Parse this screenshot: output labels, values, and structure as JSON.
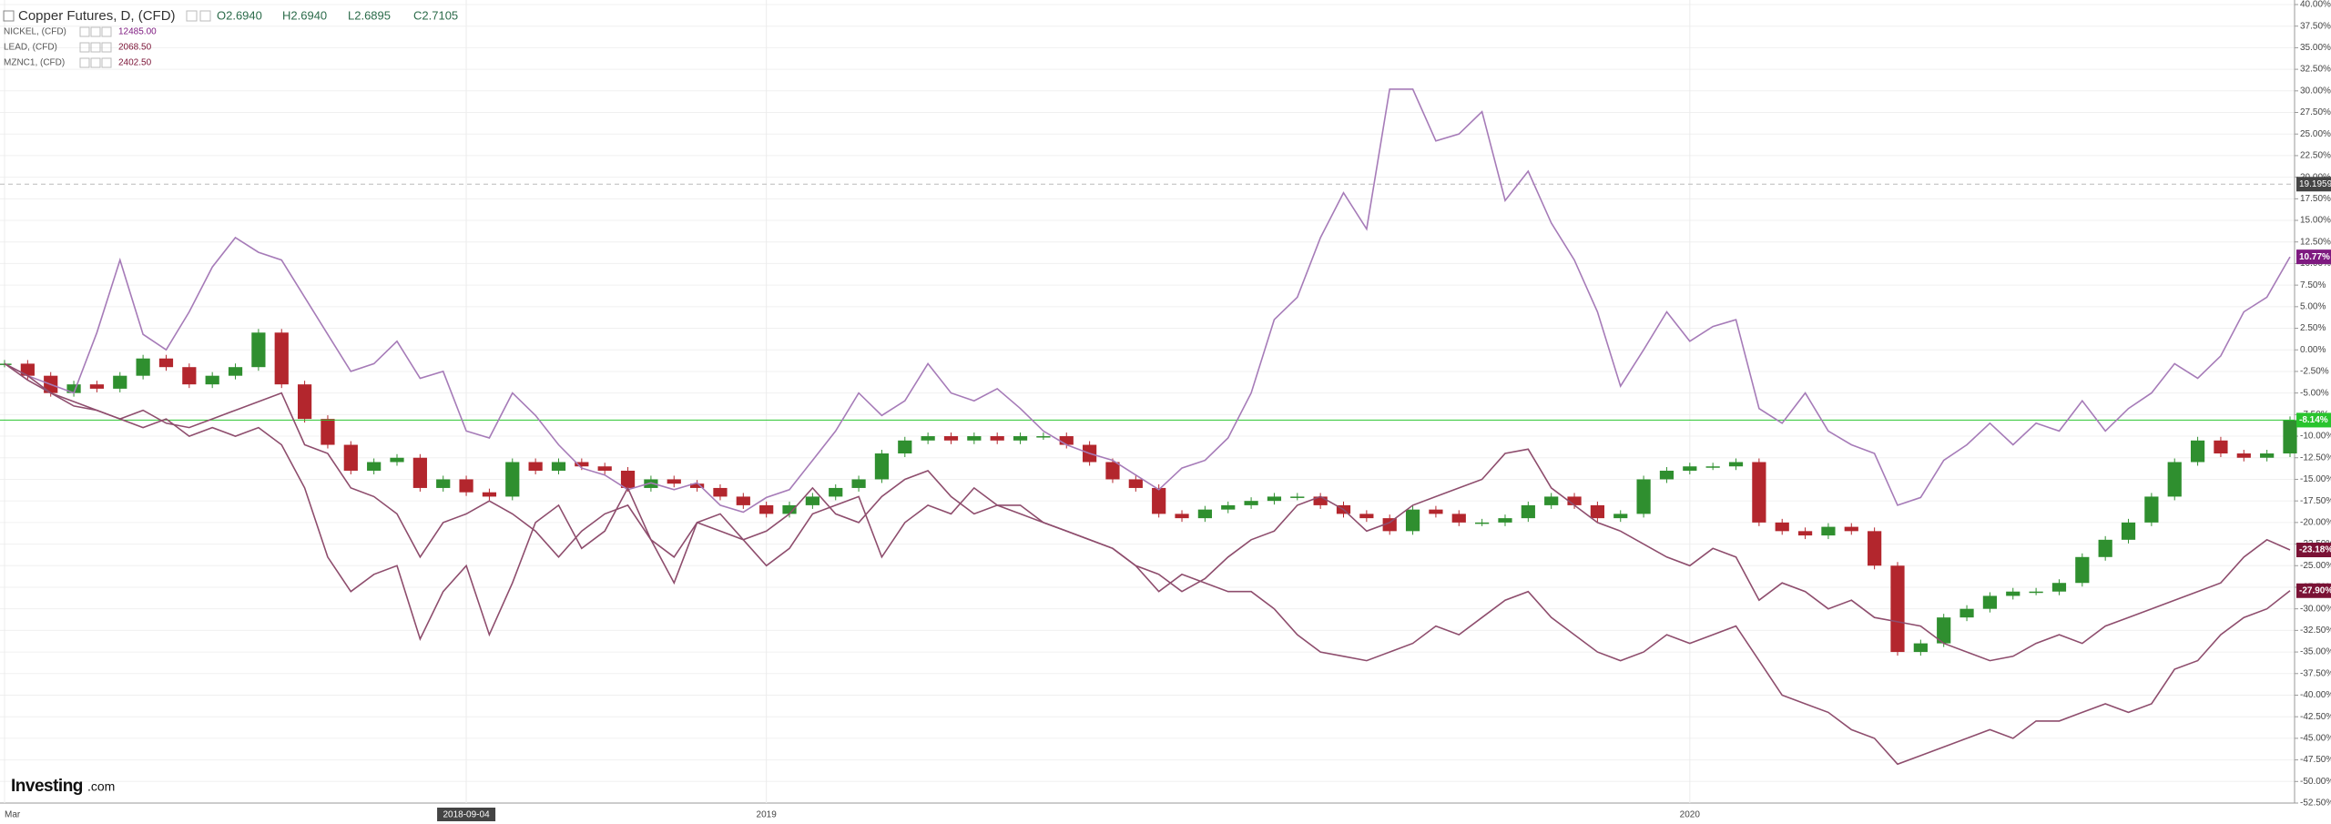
{
  "chart_data": {
    "type": "line",
    "categories": [
      "Mar",
      null,
      null,
      null,
      null,
      null,
      null,
      null,
      null,
      null,
      null,
      null,
      null,
      null,
      null,
      null,
      null,
      null,
      null,
      null,
      "2018-09-04",
      null,
      null,
      null,
      null,
      null,
      null,
      null,
      null,
      null,
      null,
      null,
      null,
      "2019",
      null,
      null,
      null,
      null,
      null,
      null,
      null,
      null,
      null,
      null,
      null,
      null,
      null,
      null,
      null,
      null,
      null,
      null,
      null,
      null,
      null,
      null,
      null,
      null,
      null,
      null,
      null,
      null,
      null,
      null,
      null,
      null,
      null,
      null,
      null,
      null,
      null,
      null,
      null,
      "2020",
      null,
      null,
      null,
      null,
      null,
      null,
      null,
      null,
      null,
      null,
      null,
      null,
      null,
      null,
      null,
      null,
      null,
      null,
      null,
      null,
      null,
      null,
      null,
      null,
      null,
      null
    ],
    "series": [
      {
        "name": "Copper Futures, D, (CFD)",
        "type": "candlestick",
        "ohlc": [
          "O2.6940",
          "H2.6940",
          "L2.6895",
          "C2.7105"
        ],
        "up_color": "#2f8f2f",
        "down_color": "#b3262d",
        "color": "#29c42e",
        "last_value_label": "-8.14%",
        "values": [
          -1.6,
          -3,
          -5,
          -4,
          -4.5,
          -3,
          -1,
          -2,
          -4,
          -3,
          -2,
          2,
          -4,
          -8,
          -11,
          -14,
          -13,
          -12.5,
          -16,
          -15,
          -16.5,
          -17,
          -13,
          -14,
          -13,
          -13.5,
          -14,
          -16,
          -15,
          -15.5,
          -16,
          -17,
          -18,
          -19,
          -18,
          -17,
          -16,
          -15,
          -12,
          -10.5,
          -10,
          -10.5,
          -10,
          -10.5,
          -10,
          -10,
          -11,
          -13,
          -15,
          -16,
          -19,
          -19.5,
          -18.5,
          -18,
          -17.5,
          -17,
          -17,
          -18,
          -19,
          -19.5,
          -21,
          -18.5,
          -19,
          -20,
          -20,
          -19.5,
          -18,
          -17,
          -18,
          -19.5,
          -19,
          -15,
          -14,
          -13.5,
          -13.5,
          -13,
          -20,
          -21,
          -21.5,
          -20.5,
          -21,
          -25,
          -35,
          -34,
          -31,
          -30,
          -28.5,
          -28,
          -28,
          -27,
          -24,
          -22,
          -20,
          -17,
          -13,
          -10.5,
          -12,
          -12.5,
          -12,
          -8.14
        ]
      },
      {
        "name": "NICKEL, (CFD)",
        "type": "line",
        "price": "12485.00",
        "color": "#a67bb8",
        "badge_color": "#7e1a80",
        "last_value_label": "10.77%",
        "values": [
          -1.6,
          -3,
          -4,
          -5,
          2,
          10.4,
          1.8,
          0,
          4.4,
          9.6,
          13,
          11.3,
          10.4,
          6.1,
          1.8,
          -2.5,
          -1.6,
          1,
          -3.3,
          -2.5,
          -9.4,
          -10.2,
          -5,
          -7.6,
          -11,
          -13.7,
          -14.5,
          -16.2,
          -15.4,
          -16.2,
          -15.4,
          -18,
          -18.8,
          -17.1,
          -16.2,
          -12.8,
          -9.4,
          -5,
          -7.6,
          -5.9,
          -1.6,
          -5,
          -5.9,
          -4.5,
          -6.8,
          -9.4,
          -11,
          -12,
          -12.8,
          -14.5,
          -16.2,
          -13.7,
          -12.8,
          -10.2,
          -5,
          3.5,
          6.1,
          13,
          18.2,
          14,
          30.2,
          30.2,
          24.2,
          25,
          27.6,
          17.3,
          20.7,
          14.7,
          10.4,
          4.4,
          -4.2,
          0,
          4.4,
          1,
          2.7,
          3.5,
          -6.8,
          -8.5,
          -5,
          -9.4,
          -11,
          -12,
          -18,
          -17.1,
          -12.8,
          -11,
          -8.5,
          -11,
          -8.5,
          -9.4,
          -5.9,
          -9.4,
          -6.8,
          -5,
          -1.6,
          -3.3,
          -0.7,
          4.4,
          6.1,
          10.77
        ]
      },
      {
        "name": "LEAD, (CFD)",
        "type": "line",
        "price": "2068.50",
        "color": "#8e4d6d",
        "badge_color": "#7a1235",
        "last_value_label": "-27.90%",
        "values": [
          -1.6,
          -3,
          -5,
          -6.5,
          -7,
          -8,
          -9,
          -8,
          -10,
          -9,
          -10,
          -9,
          -11,
          -16,
          -24,
          -28,
          -26,
          -25,
          -33.5,
          -28,
          -25,
          -33,
          -27,
          -20,
          -18,
          -23,
          -21,
          -16,
          -22,
          -27,
          -20,
          -19,
          -22,
          -25,
          -23,
          -19,
          -18,
          -17,
          -24,
          -20,
          -18,
          -19,
          -16,
          -18,
          -19,
          -20,
          -21,
          -22,
          -23,
          -25,
          -28,
          -26,
          -27,
          -28,
          -28,
          -30,
          -33,
          -35,
          -35.5,
          -36,
          -35,
          -34,
          -32,
          -33,
          -31,
          -29,
          -28,
          -31,
          -33,
          -35,
          -36,
          -35,
          -33,
          -34,
          -33,
          -32,
          -36,
          -40,
          -41,
          -42,
          -44,
          -45,
          -48,
          -47,
          -46,
          -45,
          -44,
          -45,
          -43,
          -43,
          -42,
          -41,
          -42,
          -41,
          -37,
          -36,
          -33,
          -31,
          -30,
          -27.9
        ]
      },
      {
        "name": "MZNC1, (CFD)",
        "type": "line",
        "price": "2402.50",
        "color": "#8e4d6d",
        "badge_color": "#7a1235",
        "last_value_label": "-23.18%",
        "values": [
          -1.6,
          -3.5,
          -5,
          -6,
          -7,
          -8,
          -7,
          -8.5,
          -9,
          -8,
          -7,
          -6,
          -5,
          -11,
          -12,
          -16,
          -17,
          -19,
          -24,
          -20,
          -19,
          -17.5,
          -19,
          -21,
          -24,
          -21,
          -19,
          -18,
          -22,
          -24,
          -20,
          -21,
          -22,
          -21,
          -19,
          -16,
          -19,
          -20,
          -17,
          -15,
          -14,
          -17,
          -19,
          -18,
          -18,
          -20,
          -21,
          -22,
          -23,
          -25,
          -26,
          -28,
          -26.5,
          -24,
          -22,
          -21,
          -18,
          -17,
          -18.5,
          -21,
          -20,
          -18,
          -17,
          -16,
          -15,
          -12,
          -11.5,
          -16,
          -18,
          -20,
          -21,
          -22.5,
          -24,
          -25,
          -23,
          -24,
          -29,
          -27,
          -28,
          -30,
          -29,
          -31,
          -31.5,
          -32,
          -34,
          -35,
          -36,
          -35.5,
          -34,
          -33,
          -34,
          -32,
          -31,
          -30,
          -29,
          -28,
          -27,
          -24,
          -22,
          -23.18
        ]
      }
    ],
    "ylim": [
      -52.5,
      40
    ],
    "yticks": [
      {
        "value": 40,
        "label": "40.00%"
      },
      {
        "value": 37.5,
        "label": "37.50%"
      },
      {
        "value": 35,
        "label": "35.00%"
      },
      {
        "value": 32.5,
        "label": "32.50%"
      },
      {
        "value": 30,
        "label": "30.00%"
      },
      {
        "value": 27.5,
        "label": "27.50%"
      },
      {
        "value": 25,
        "label": "25.00%"
      },
      {
        "value": 22.5,
        "label": "22.50%"
      },
      {
        "value": 20,
        "label": "20.00%"
      },
      {
        "value": 17.5,
        "label": "17.50%"
      },
      {
        "value": 15,
        "label": "15.00%"
      },
      {
        "value": 12.5,
        "label": "12.50%"
      },
      {
        "value": 10,
        "label": "10.00%"
      },
      {
        "value": 7.5,
        "label": "7.50%"
      },
      {
        "value": 5,
        "label": "5.00%"
      },
      {
        "value": 2.5,
        "label": "2.50%"
      },
      {
        "value": 0,
        "label": "0.00%"
      },
      {
        "value": -2.5,
        "label": "-2.50%"
      },
      {
        "value": -5,
        "label": "-5.00%"
      },
      {
        "value": -7.5,
        "label": "-7.50%"
      },
      {
        "value": -10,
        "label": "-10.00%"
      },
      {
        "value": -12.5,
        "label": "-12.50%"
      },
      {
        "value": -15,
        "label": "-15.00%"
      },
      {
        "value": -17.5,
        "label": "-17.50%"
      },
      {
        "value": -20,
        "label": "-20.00%"
      },
      {
        "value": -22.5,
        "label": "-22.50%"
      },
      {
        "value": -25,
        "label": "-25.00%"
      },
      {
        "value": -27.5,
        "label": "-27.50%"
      },
      {
        "value": -30,
        "label": "-30.00%"
      },
      {
        "value": -32.5,
        "label": "-32.50%"
      },
      {
        "value": -35,
        "label": "-35.00%"
      },
      {
        "value": -37.5,
        "label": "-37.50%"
      },
      {
        "value": -40,
        "label": "-40.00%"
      },
      {
        "value": -42.5,
        "label": "-42.50%"
      },
      {
        "value": -45,
        "label": "-45.00%"
      },
      {
        "value": -47.5,
        "label": "-47.50%"
      },
      {
        "value": -50,
        "label": "-50.00%"
      },
      {
        "value": -52.5,
        "label": "-52.50%"
      }
    ],
    "grid": true,
    "crosshair": {
      "value": 19.1959,
      "label": "19.1959"
    },
    "logo": {
      "brand": "Investing",
      "suffix": ".com"
    }
  }
}
